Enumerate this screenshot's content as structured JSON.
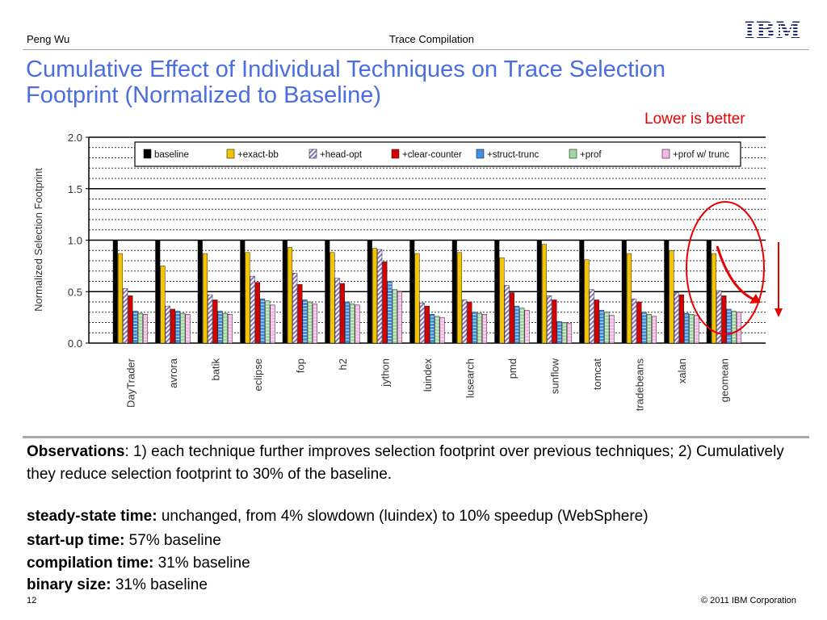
{
  "header": {
    "author": "Peng Wu",
    "center": "Trace Compilation",
    "logo_text": "IBM"
  },
  "slide": {
    "title_line1": "Cumulative Effect of Individual Techniques on Trace Selection",
    "title_line2": "Footprint (Normalized to Baseline)",
    "callout": "Lower is better"
  },
  "chart_data": {
    "type": "bar",
    "ylabel": "Normalized Selection Footprint",
    "ylim": [
      0,
      2.0
    ],
    "yticks": [
      "0.0",
      "0.5",
      "1.0",
      "1.5",
      "2.0"
    ],
    "grid": "dotted horizontal lines",
    "legend_position": "top",
    "categories": [
      "DayTrader",
      "avrora",
      "batik",
      "eclipse",
      "fop",
      "h2",
      "jython",
      "luindex",
      "lusearch",
      "pmd",
      "sunflow",
      "tomcat",
      "tradebeans",
      "xalan",
      "geomean"
    ],
    "series": [
      {
        "name": "baseline",
        "color": "#000000",
        "pattern": "solid",
        "values": [
          1.0,
          1.0,
          1.0,
          1.0,
          1.0,
          1.0,
          1.0,
          1.0,
          1.0,
          1.0,
          1.0,
          1.0,
          1.0,
          1.0,
          1.0
        ]
      },
      {
        "name": "+exact-bb",
        "color": "#f5c400",
        "pattern": "solid",
        "values": [
          0.87,
          0.75,
          0.87,
          0.88,
          0.93,
          0.88,
          0.92,
          0.87,
          0.88,
          0.83,
          0.96,
          0.81,
          0.87,
          0.9,
          0.87
        ]
      },
      {
        "name": "+head-opt",
        "color": "#8b6fc8",
        "pattern": "hatch",
        "values": [
          0.53,
          0.36,
          0.47,
          0.65,
          0.68,
          0.63,
          0.91,
          0.39,
          0.42,
          0.56,
          0.46,
          0.52,
          0.43,
          0.49,
          0.51
        ]
      },
      {
        "name": "+clear-counter",
        "color": "#d40000",
        "pattern": "solid",
        "values": [
          0.46,
          0.33,
          0.42,
          0.59,
          0.57,
          0.58,
          0.79,
          0.36,
          0.4,
          0.49,
          0.42,
          0.42,
          0.4,
          0.47,
          0.46
        ]
      },
      {
        "name": "+struct-trunc",
        "color": "#3f8ee6",
        "pattern": "dashes",
        "values": [
          0.31,
          0.31,
          0.31,
          0.43,
          0.42,
          0.4,
          0.6,
          0.28,
          0.3,
          0.36,
          0.21,
          0.32,
          0.3,
          0.29,
          0.33
        ]
      },
      {
        "name": "+prof",
        "color": "#9fd8a0",
        "pattern": "dashes",
        "values": [
          0.29,
          0.29,
          0.29,
          0.41,
          0.4,
          0.38,
          0.52,
          0.26,
          0.29,
          0.34,
          0.2,
          0.3,
          0.28,
          0.28,
          0.31
        ]
      },
      {
        "name": "+prof w/ trunc",
        "color": "#f7b6e3",
        "pattern": "dashes",
        "values": [
          0.28,
          0.28,
          0.28,
          0.37,
          0.38,
          0.37,
          0.5,
          0.25,
          0.28,
          0.32,
          0.19,
          0.27,
          0.26,
          0.27,
          0.3
        ]
      }
    ]
  },
  "notes": {
    "obs_label": "Observations",
    "obs_text": ": 1) each technique further improves selection footprint over previous techniques; 2) Cumulatively they reduce selection footprint to 30% of the baseline.",
    "steady_label": "steady-state time:",
    "steady_text": " unchanged, from 4% slowdown (luindex) to 10% speedup (WebSphere)",
    "startup_label": "start-up time:",
    "startup_text": " 57% baseline",
    "compile_label": "compilation time:",
    "compile_text": " 31% baseline",
    "binary_label": "binary size:",
    "binary_text": " 31% baseline"
  },
  "footer": {
    "page_number": "12",
    "copyright": "© 2011 IBM Corporation"
  }
}
